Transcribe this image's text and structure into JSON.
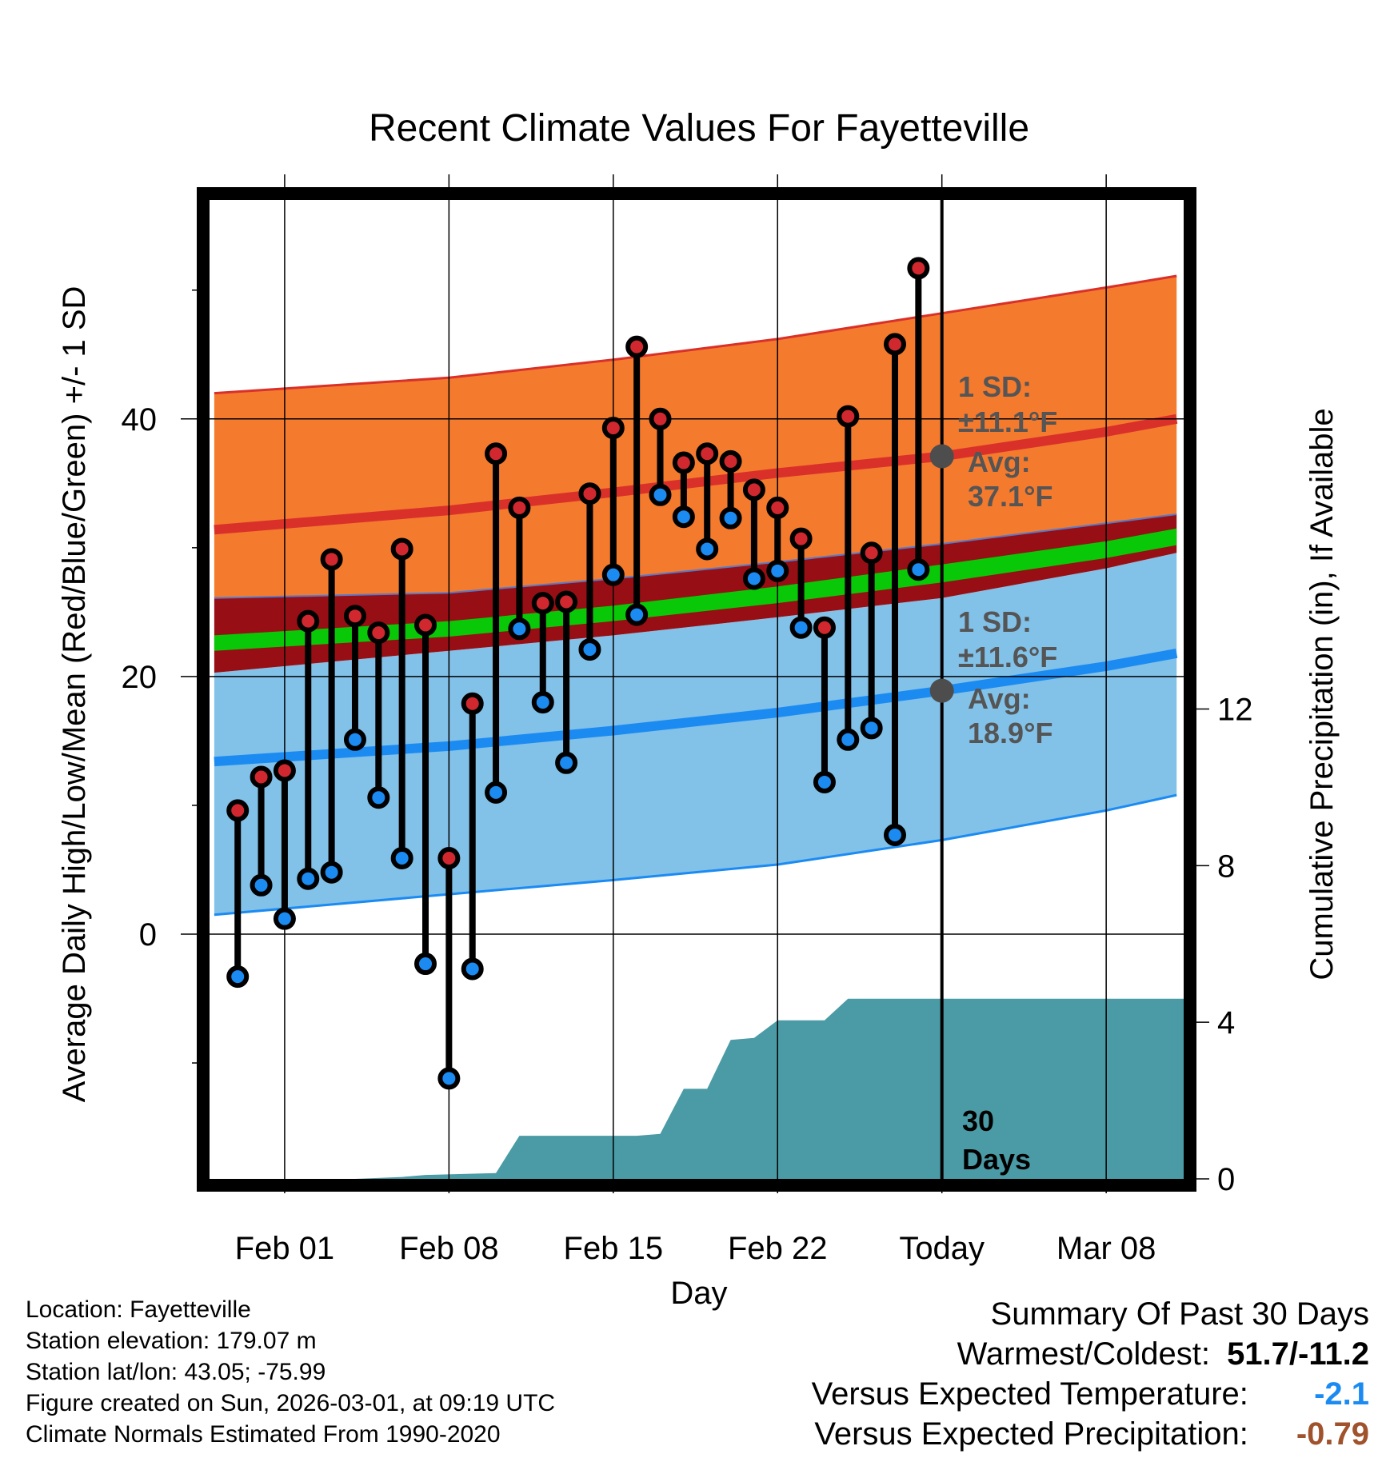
{
  "chart_data": {
    "type": "line",
    "title": "Recent Climate Values For Fayetteville",
    "xlabel": "Day",
    "ylabel": "Average Daily High/Low/Mean (Red/Blue/Green) +/- 1 SD",
    "y2label": "Cumulative Precipitation (in), If Available",
    "x_ticks": [
      "Feb 01",
      "Feb 08",
      "Feb 15",
      "Feb 22",
      "Today",
      "Mar 08"
    ],
    "x_tick_days": [
      0,
      7,
      14,
      21,
      28,
      35
    ],
    "xlim": [
      -3.2,
      38.3
    ],
    "ylim": [
      -19,
      57
    ],
    "y_ticks": [
      "0",
      "20",
      "40"
    ],
    "y_tick_values": [
      0,
      20,
      40
    ],
    "y_minor_values": [
      -10,
      10,
      30,
      50
    ],
    "y2lim": [
      0,
      25.0
    ],
    "y2_ticks": [
      "0",
      "4",
      "8",
      "12"
    ],
    "y2_tick_values": [
      0,
      4,
      8,
      12
    ],
    "today_day": 28,
    "observations": {
      "days": [
        -2,
        -1,
        0,
        1,
        2,
        3,
        4,
        5,
        6,
        7,
        8,
        9,
        10,
        11,
        12,
        13,
        14,
        15,
        16,
        17,
        18,
        19,
        20,
        21,
        22,
        23,
        24,
        25,
        26,
        27
      ],
      "highs": [
        9.6,
        12.2,
        12.7,
        24.3,
        29.1,
        24.7,
        23.4,
        29.9,
        24.0,
        5.9,
        17.9,
        37.3,
        33.1,
        25.7,
        25.8,
        34.2,
        39.3,
        45.6,
        40.0,
        36.6,
        37.3,
        36.7,
        34.5,
        33.1,
        30.7,
        23.8,
        40.2,
        29.6,
        45.8,
        51.7
      ],
      "lows": [
        -3.3,
        3.8,
        1.2,
        4.3,
        4.8,
        15.1,
        10.6,
        5.9,
        -2.3,
        -11.2,
        -2.7,
        11.0,
        23.7,
        18.0,
        13.3,
        22.1,
        27.9,
        24.8,
        34.1,
        32.4,
        29.9,
        32.3,
        27.6,
        28.2,
        23.8,
        11.8,
        15.1,
        16.0,
        7.7,
        28.3
      ]
    },
    "normals": {
      "days": [
        -3,
        7,
        14,
        21,
        28,
        35,
        38
      ],
      "high_mean": [
        31.4,
        32.9,
        34.3,
        35.8,
        37.1,
        39.0,
        40.0
      ],
      "high_sd_upper": [
        42.0,
        43.2,
        44.6,
        46.2,
        48.2,
        50.2,
        51.1
      ],
      "low_mean": [
        13.4,
        14.6,
        15.8,
        17.2,
        18.9,
        20.8,
        21.8
      ],
      "low_sd_lower": [
        1.5,
        3.1,
        4.2,
        5.4,
        7.3,
        9.6,
        10.8
      ],
      "avg_mean": [
        22.5,
        23.8,
        25.0,
        26.4,
        28.0,
        29.9,
        30.9
      ],
      "bands": {
        "orange_top": [
          42.0,
          43.2,
          44.6,
          46.2,
          48.2,
          50.2,
          51.1
        ],
        "orange_bottom": [
          26.1,
          26.5,
          27.6,
          28.9,
          30.3,
          31.9,
          32.6
        ],
        "darkred_bottom": [
          20.3,
          22.0,
          23.2,
          24.6,
          26.1,
          28.4,
          29.6
        ],
        "green_top": [
          23.2,
          24.3,
          25.5,
          27.0,
          28.7,
          30.5,
          31.5
        ],
        "green_bottom": [
          22.0,
          23.1,
          24.3,
          25.7,
          27.3,
          29.2,
          30.2
        ],
        "blue_top": [
          20.3,
          22.0,
          23.2,
          24.6,
          26.1,
          28.4,
          29.6
        ]
      }
    },
    "precip_cumulative": {
      "days": [
        -3,
        3,
        5,
        6,
        9,
        10,
        15,
        16,
        17,
        18,
        19,
        20,
        21,
        22,
        23,
        24,
        25,
        26,
        38.3
      ],
      "values": [
        0,
        0,
        0.05,
        0.1,
        0.15,
        1.1,
        1.1,
        1.15,
        2.3,
        2.3,
        3.55,
        3.6,
        4.05,
        4.05,
        4.05,
        4.6,
        4.6,
        4.6,
        4.6
      ]
    },
    "annotations": {
      "high_sd": "1 SD:",
      "high_sd_value": "±11.1°F",
      "high_avg_label": "Avg:",
      "high_avg_value": "37.1°F",
      "low_sd": "1 SD:",
      "low_sd_value": "±11.6°F",
      "low_avg_label": "Avg:",
      "low_avg_value": "18.9°F",
      "period_number": "30",
      "period_unit": "Days"
    },
    "colors": {
      "high_band": "#f47a2e",
      "high_band_edge": "#d9312a",
      "mean_band": "#970f14",
      "mean_line": "#08c808",
      "low_band": "#82c1e8",
      "low_band_edge": "#1b8bf2",
      "high_dot": "#d0282e",
      "low_dot": "#1b8bf2",
      "precip": "#4a9ba5",
      "annotation": "#555555",
      "avg_marker": "#4d4d4d"
    }
  },
  "footer": {
    "location": "Location: Fayetteville",
    "elevation": "Station elevation: 179.07 m",
    "latlon": "Station lat/lon: 43.05; -75.99",
    "created": "Figure created on Sun, 2026-03-01, at 09:19 UTC",
    "normals": "Climate Normals Estimated From 1990-2020"
  },
  "summary": {
    "title": "Summary Of Past 30 Days",
    "warmest_label": "Warmest/Coldest:",
    "warmest_value": "51.7/-11.2",
    "temp_label": "Versus Expected Temperature:",
    "temp_value": "-2.1",
    "temp_color": "#1b8bf2",
    "precip_label": "Versus Expected Precipitation:",
    "precip_value": "-0.79",
    "precip_color": "#a0522d"
  }
}
